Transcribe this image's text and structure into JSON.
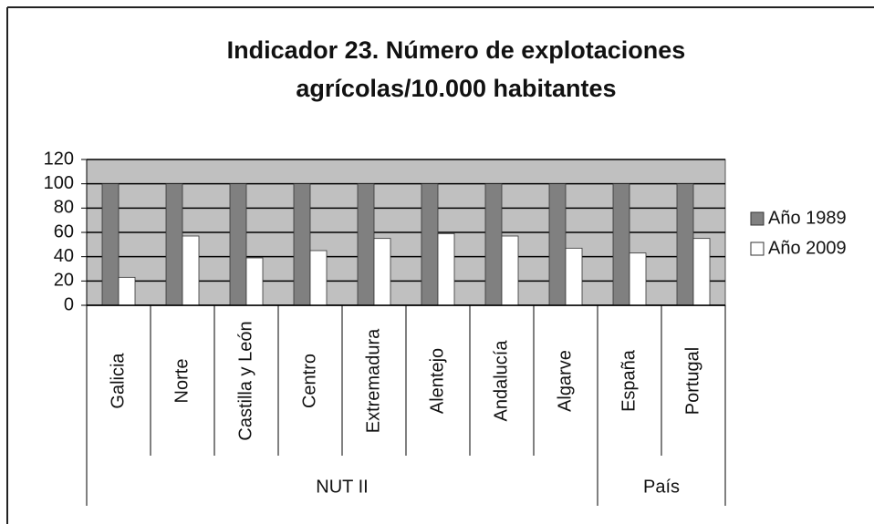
{
  "chart_data": {
    "type": "bar",
    "title": "Indicador 23. Número de explotaciones agrícolas/10.000 habitantes",
    "groups": [
      {
        "label": "NUT II",
        "categories": [
          "Galicia",
          "Norte",
          "Castilla y León",
          "Centro",
          "Extremadura",
          "Alentejo",
          "Andalucía",
          "Algarve"
        ]
      },
      {
        "label": "País",
        "categories": [
          "España",
          "Portugal"
        ]
      }
    ],
    "series": [
      {
        "name": "Año 1989",
        "color": "#808080",
        "values": [
          100,
          100,
          100,
          100,
          100,
          100,
          100,
          100,
          100,
          100
        ]
      },
      {
        "name": "Año 2009",
        "color": "#ffffff",
        "values": [
          23,
          57,
          39,
          45,
          55,
          59,
          57,
          47,
          43,
          55
        ]
      }
    ],
    "ylim": [
      0,
      120
    ],
    "yticks": [
      0,
      20,
      40,
      60,
      80,
      100,
      120
    ],
    "grid": true,
    "plot_background": "#c0c0c0",
    "legend": "right"
  }
}
